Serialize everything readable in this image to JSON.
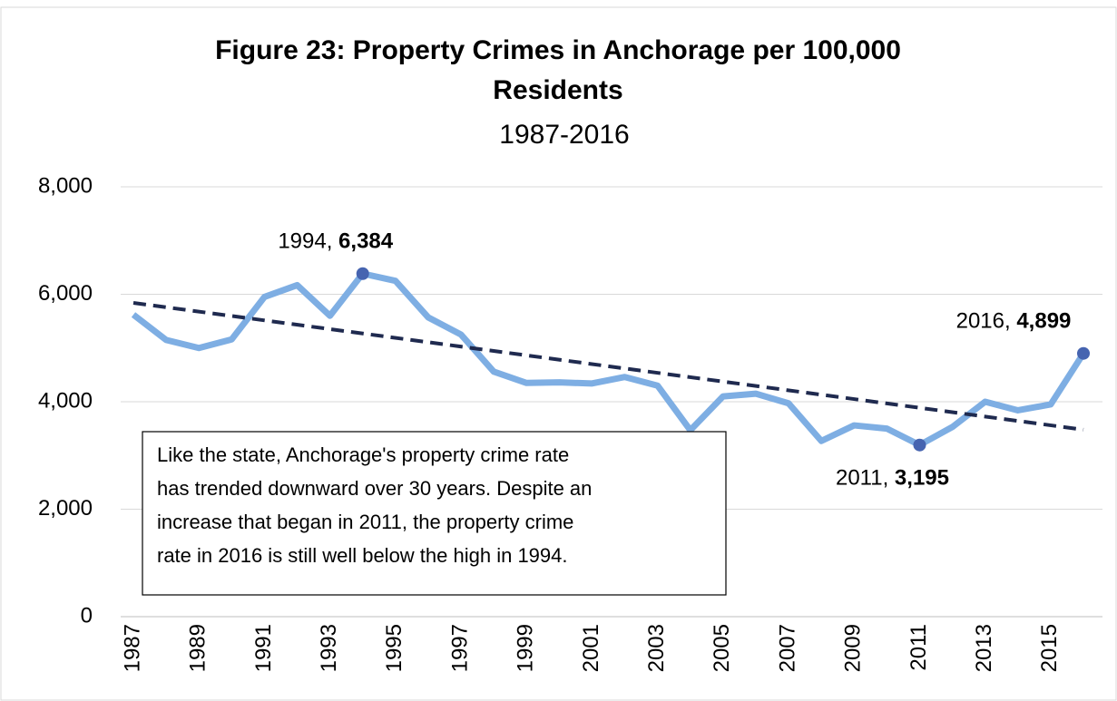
{
  "chart_data": {
    "type": "line",
    "title": [
      "Figure 23: Property Crimes in Anchorage per 100,000",
      "Residents"
    ],
    "subtitle": "1987-2016",
    "x": [
      1987,
      1988,
      1989,
      1990,
      1991,
      1992,
      1993,
      1994,
      1995,
      1996,
      1997,
      1998,
      1999,
      2000,
      2001,
      2002,
      2003,
      2004,
      2005,
      2006,
      2007,
      2008,
      2009,
      2010,
      2011,
      2012,
      2013,
      2014,
      2015,
      2016
    ],
    "xlim": [
      1987,
      2016
    ],
    "xticks": [
      1987,
      1989,
      1991,
      1993,
      1995,
      1997,
      1999,
      2001,
      2003,
      2005,
      2007,
      2009,
      2011,
      2013,
      2015
    ],
    "ylim": [
      0,
      8000
    ],
    "yticks": [
      0,
      {
        "value": 2000,
        "label": "2,000"
      },
      {
        "value": 4000,
        "label": "4,000"
      },
      {
        "value": 6000,
        "label": "6,000"
      },
      {
        "value": 8000,
        "label": "8,000"
      }
    ],
    "grid": true,
    "series": [
      {
        "color": "#7eaee3",
        "values": [
          5620,
          5150,
          5000,
          5160,
          5950,
          6170,
          5600,
          6384,
          6250,
          5570,
          5250,
          4560,
          4350,
          4360,
          4340,
          4460,
          4300,
          3470,
          4100,
          4150,
          3970,
          3270,
          3560,
          3500,
          3195,
          3530,
          4000,
          3840,
          3950,
          4899
        ],
        "value_labels": [
          null,
          null,
          null,
          null,
          null,
          null,
          null,
          "6,384",
          null,
          null,
          null,
          null,
          null,
          null,
          null,
          null,
          null,
          null,
          null,
          null,
          null,
          null,
          null,
          null,
          "3,195",
          null,
          null,
          null,
          null,
          "4,899"
        ],
        "label_prefixes": [
          null,
          null,
          null,
          null,
          null,
          null,
          null,
          "1994, ",
          null,
          null,
          null,
          null,
          null,
          null,
          null,
          null,
          null,
          null,
          null,
          null,
          null,
          null,
          null,
          null,
          "2011, ",
          null,
          null,
          null,
          null,
          "2016, "
        ],
        "marker_color": "#4664b0"
      }
    ],
    "trend": {
      "x": [
        1987,
        2016
      ],
      "values": [
        5840,
        3480
      ],
      "color": "#1f2a4f"
    },
    "note": [
      "Like the state, Anchorage's property crime rate",
      "has trended downward over 30 years. Despite an",
      "increase that began in 2011, the property crime",
      "rate in 2016 is still well below the high in 1994."
    ]
  }
}
